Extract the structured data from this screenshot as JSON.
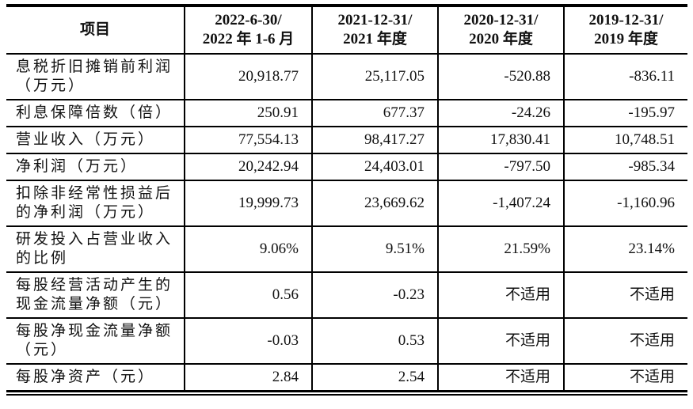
{
  "table": {
    "header": {
      "item_label": "项目",
      "periods": [
        {
          "line1": "2022-6-30/",
          "line2": "2022 年 1-6 月"
        },
        {
          "line1": "2021-12-31/",
          "line2": "2021 年度"
        },
        {
          "line1": "2020-12-31/",
          "line2": "2020 年度"
        },
        {
          "line1": "2019-12-31/",
          "line2": "2019 年度"
        }
      ]
    },
    "rows": [
      {
        "label": "息税折旧摊销前利润（万元）",
        "values": [
          "20,918.77",
          "25,117.05",
          "-520.88",
          "-836.11"
        ]
      },
      {
        "label": "利息保障倍数（倍）",
        "values": [
          "250.91",
          "677.37",
          "-24.26",
          "-195.97"
        ]
      },
      {
        "label": "营业收入（万元）",
        "values": [
          "77,554.13",
          "98,417.27",
          "17,830.41",
          "10,748.51"
        ]
      },
      {
        "label": "净利润（万元）",
        "values": [
          "20,242.94",
          "24,403.01",
          "-797.50",
          "-985.34"
        ]
      },
      {
        "label": "扣除非经常性损益后的净利润（万元）",
        "values": [
          "19,999.73",
          "23,669.62",
          "-1,407.24",
          "-1,160.96"
        ]
      },
      {
        "label": "研发投入占营业收入的比例",
        "values": [
          "9.06%",
          "9.51%",
          "21.59%",
          "23.14%"
        ]
      },
      {
        "label": "每股经营活动产生的现金流量净额（元）",
        "values": [
          "0.56",
          "-0.23",
          "不适用",
          "不适用"
        ]
      },
      {
        "label": "每股净现金流量净额（元）",
        "values": [
          "-0.03",
          "0.53",
          "不适用",
          "不适用"
        ]
      },
      {
        "label": "每股净资产（元）",
        "values": [
          "2.84",
          "2.54",
          "不适用",
          "不适用"
        ]
      }
    ]
  }
}
